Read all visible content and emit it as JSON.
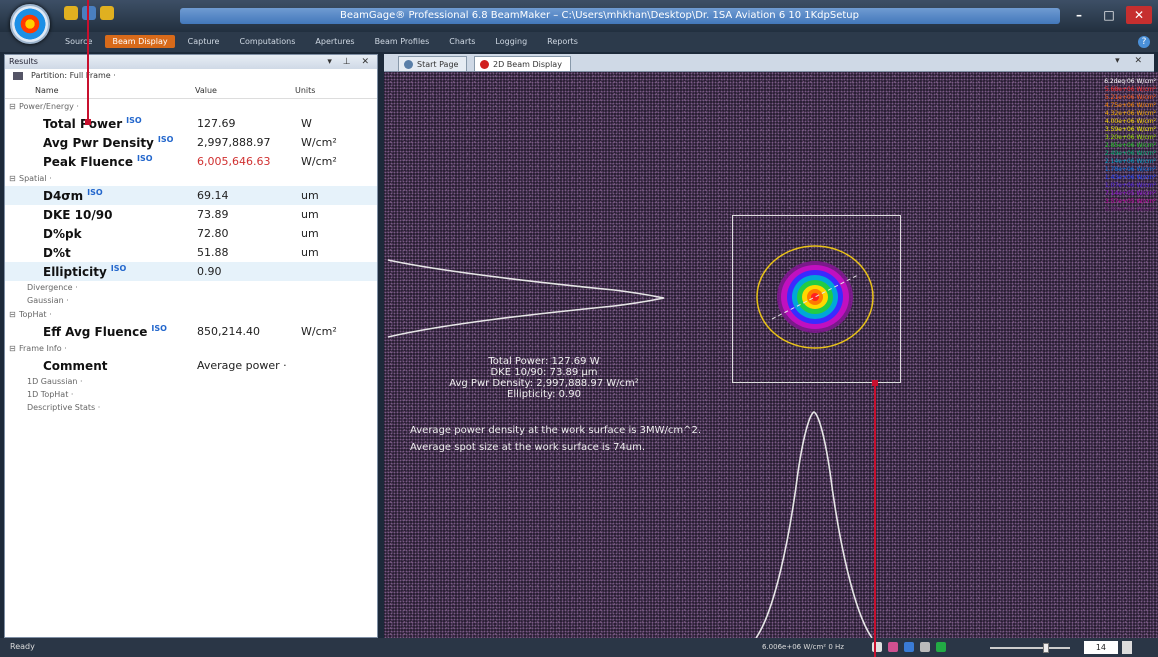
{
  "app": {
    "title": "BeamGage® Professional 6.8 BeamMaker – C:\\Users\\mhkhan\\Desktop\\Dr. 1SA Aviation 6 10 1KdpSetup"
  },
  "ribbon": {
    "tabs": [
      "Source",
      "Beam Display",
      "Capture",
      "Computations",
      "Apertures",
      "Beam Profiles",
      "Charts",
      "Logging",
      "Reports"
    ],
    "active_tab": "Beam Display"
  },
  "results": {
    "panel_title": "Results",
    "panel_controls": "▾ ⊥ ✕",
    "partition_label": "Partition: Full Frame ·",
    "columns": {
      "name": "Name",
      "value": "Value",
      "units": "Units"
    },
    "groups": {
      "power": "Power/Energy ·",
      "spatial": "Spatial ·",
      "divergence": "Divergence ·",
      "gaussian": "Gaussian ·",
      "tophat": "TopHat ·",
      "frame_info": "Frame Info ·",
      "gaussian_1d": "1D Gaussian ·",
      "tophat_1d": "1D TopHat ·",
      "descriptive": "Descriptive Stats ·"
    },
    "rows": {
      "total_power": {
        "name": "Total Power",
        "iso": "ISO",
        "value": "127.69",
        "unit": "W"
      },
      "avg_pwr_density": {
        "name": "Avg Pwr Density",
        "iso": "ISO",
        "value": "2,997,888.97",
        "unit": "W/cm²"
      },
      "peak_fluence": {
        "name": "Peak Fluence",
        "iso": "ISO",
        "value": "6,005,646.63",
        "unit": "W/cm²"
      },
      "d4sigma": {
        "name": "D4σm",
        "iso": "ISO",
        "value": "69.14",
        "unit": "um"
      },
      "dke": {
        "name": "DKE 10/90",
        "value": "73.89",
        "unit": "um"
      },
      "dpk": {
        "name": "D%pk",
        "value": "72.80",
        "unit": "um"
      },
      "dt": {
        "name": "D%t",
        "value": "51.88",
        "unit": "um"
      },
      "ellipticity": {
        "name": "Ellipticity",
        "iso": "ISO",
        "value": "0.90",
        "unit": ""
      },
      "eff_avg_fluence": {
        "name": "Eff Avg Fluence",
        "iso": "ISO",
        "value": "850,214.40",
        "unit": "W/cm²"
      },
      "comment": {
        "name": "Comment",
        "value": "Average power ·",
        "unit": ""
      }
    }
  },
  "doc_tabs": {
    "start_page": "Start Page",
    "beam_display": "2D Beam Display",
    "controls": "▾ ✕"
  },
  "beam_display": {
    "legend": [
      {
        "text": "6.2deq·06 W/cm²",
        "color": "#ffffff"
      },
      {
        "text": "5.68e+06 W/cm²",
        "color": "#ff3030"
      },
      {
        "text": "5.21e+06 W/cm²",
        "color": "#ff5a1a"
      },
      {
        "text": "4.75e+06 W/cm²",
        "color": "#ff8a00"
      },
      {
        "text": "4.32e+06 W/cm²",
        "color": "#ffb000"
      },
      {
        "text": "4.00e+06 W/cm²",
        "color": "#ffd800"
      },
      {
        "text": "3.59e+06 W/cm²",
        "color": "#f3ee00"
      },
      {
        "text": "3.20e+06 W/cm²",
        "color": "#9ee000"
      },
      {
        "text": "2.85e+06 W/cm²",
        "color": "#22cc22"
      },
      {
        "text": "2.49e+06 W/cm²",
        "color": "#00b070"
      },
      {
        "text": "2.14e+06 W/cm²",
        "color": "#00a0c0"
      },
      {
        "text": "1.78e+06 W/cm²",
        "color": "#0070e0"
      },
      {
        "text": "1.43e+06 W/cm²",
        "color": "#2040ff"
      },
      {
        "text": "1.07e+06 W/cm²",
        "color": "#5020e0"
      },
      {
        "text": "7.14e+05 W/cm²",
        "color": "#9010d0"
      },
      {
        "text": "3.57e+05 W/cm²",
        "color": "#c000a0"
      },
      {
        "text": "0.00e+00 W/cm²",
        "color": "#70207a"
      }
    ],
    "overlay": {
      "line1": "Total Power: 127.69 W",
      "line2": "DKE 10/90: 73.89 µm",
      "line3": "Avg Pwr Density: 2,997,888.97 W/cm²",
      "line4": "Ellipticity: 0.90"
    },
    "notes": {
      "line1": "Average power density at the work surface is 3MW/cm^2.",
      "line2": "Average spot size at the work surface is 74um."
    }
  },
  "status": {
    "ready": "Ready",
    "readout": "6.006e+06 W/cm²   0 Hz",
    "zoom_value": "14",
    "zoom_fraction": 0.72
  },
  "colors": {
    "accent": "#d86a1a",
    "annotation": "#c8102e",
    "profile": "#e6e6e6"
  }
}
